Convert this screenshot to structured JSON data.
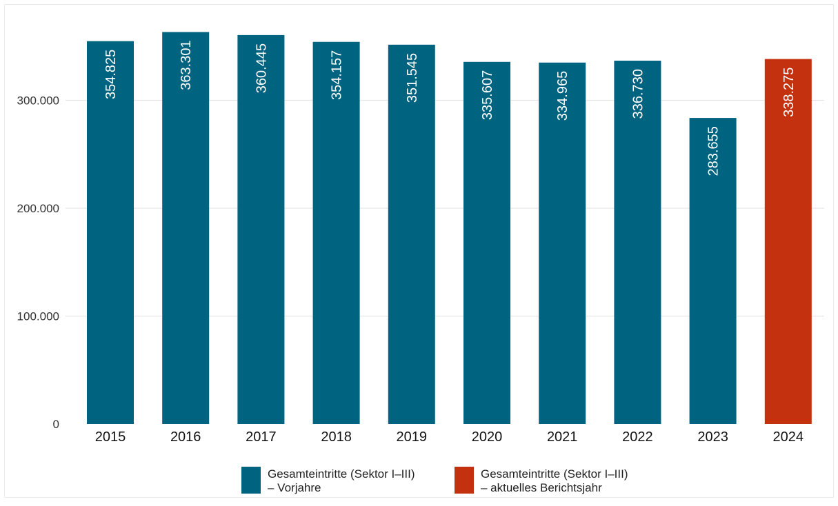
{
  "chart_data": {
    "type": "bar",
    "categories": [
      "2015",
      "2016",
      "2017",
      "2018",
      "2019",
      "2020",
      "2021",
      "2022",
      "2023",
      "2024"
    ],
    "values": [
      354825,
      363301,
      360445,
      354157,
      351545,
      335607,
      334965,
      336730,
      283655,
      338275
    ],
    "value_labels": [
      "354.825",
      "363.301",
      "360.445",
      "354.157",
      "351.545",
      "335.607",
      "334.965",
      "336.730",
      "283.655",
      "338.275"
    ],
    "highlight_index": 9,
    "ylim": [
      0,
      375000
    ],
    "yticks": [
      {
        "value": 0,
        "label": "0"
      },
      {
        "value": 100000,
        "label": "100.000"
      },
      {
        "value": 200000,
        "label": "200.000"
      },
      {
        "value": 300000,
        "label": "300.000"
      }
    ],
    "grid": "horizontal",
    "legend_position": "bottom",
    "legend": [
      {
        "line1": "Gesamteintritte (Sektor I–III)",
        "line2": "– Vorjahre",
        "color": "#006480"
      },
      {
        "line1": "Gesamteintritte (Sektor I–III)",
        "line2": "– aktuelles Berichtsjahr",
        "color": "#C3310E"
      }
    ],
    "colors": {
      "base": "#006480",
      "highlight": "#C3310E",
      "grid": "#e6e6e6"
    }
  }
}
